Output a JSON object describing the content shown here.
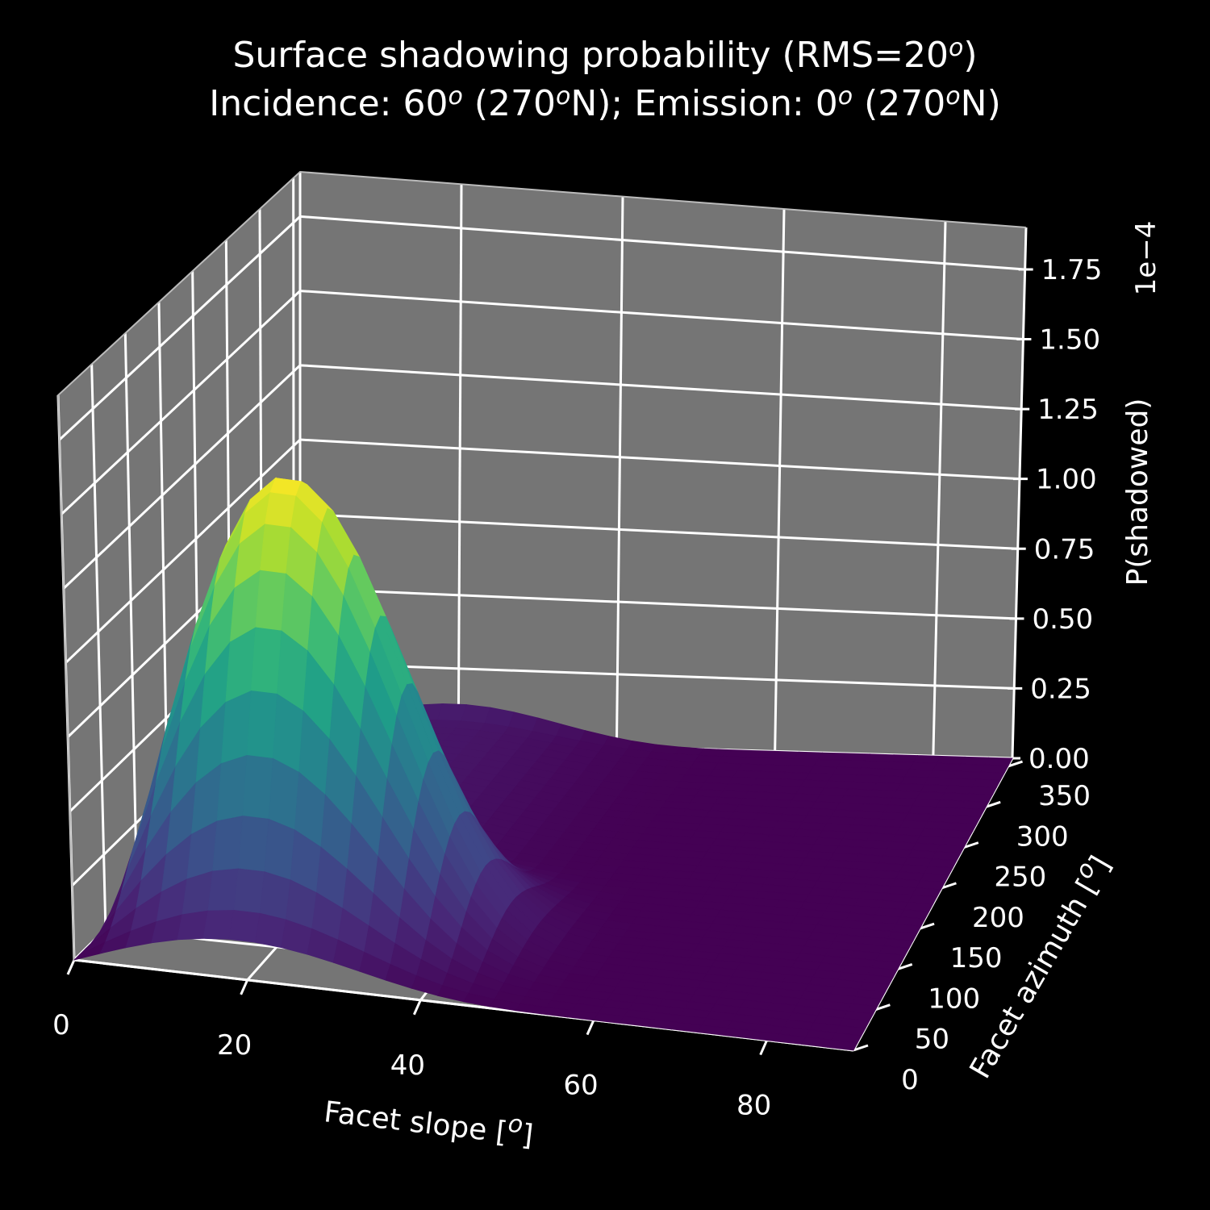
{
  "chart_data": {
    "type": "surface",
    "title": {
      "line1": {
        "pre": "Surface shadowing probability (RMS=20",
        "sup": "o",
        "post": ")"
      },
      "line2": [
        {
          "t": "Incidence: 60",
          "s": "o"
        },
        {
          "t": " (270",
          "s": "o"
        },
        {
          "t": "N); Emission: 0",
          "s": "o"
        },
        {
          "t": " (270",
          "s": "o"
        },
        {
          "t": "N)",
          "s": ""
        }
      ]
    },
    "x_axis": {
      "label": "Facet slope [",
      "label_sup": "o",
      "label_post": "]",
      "range": [
        0,
        90
      ],
      "ticks": [
        "0",
        "20",
        "40",
        "60",
        "80"
      ]
    },
    "y_axis": {
      "label": "Facet azimuth [",
      "label_sup": "o",
      "label_post": "]",
      "range": [
        0,
        360
      ],
      "ticks": [
        "0",
        "50",
        "100",
        "150",
        "200",
        "250",
        "300",
        "350"
      ]
    },
    "z_axis": {
      "label": "P(shadowed)",
      "offset_text": "1e−4",
      "range": [
        0,
        0.00019
      ],
      "ticks": [
        "0.00",
        "0.25",
        "0.50",
        "0.75",
        "1.00",
        "1.25",
        "1.50",
        "1.75"
      ]
    },
    "surface": {
      "colormap": "viridis",
      "peak_value": 0.000148,
      "peak_slope": 15,
      "peak_azimuth": 90,
      "grid_slope": [
        0,
        90,
        30
      ],
      "grid_azimuth": [
        0,
        360,
        40
      ]
    },
    "colors": {
      "background": "#000000",
      "pane": "#757575",
      "grid": "#ffffff",
      "text": "#ffffff"
    }
  }
}
